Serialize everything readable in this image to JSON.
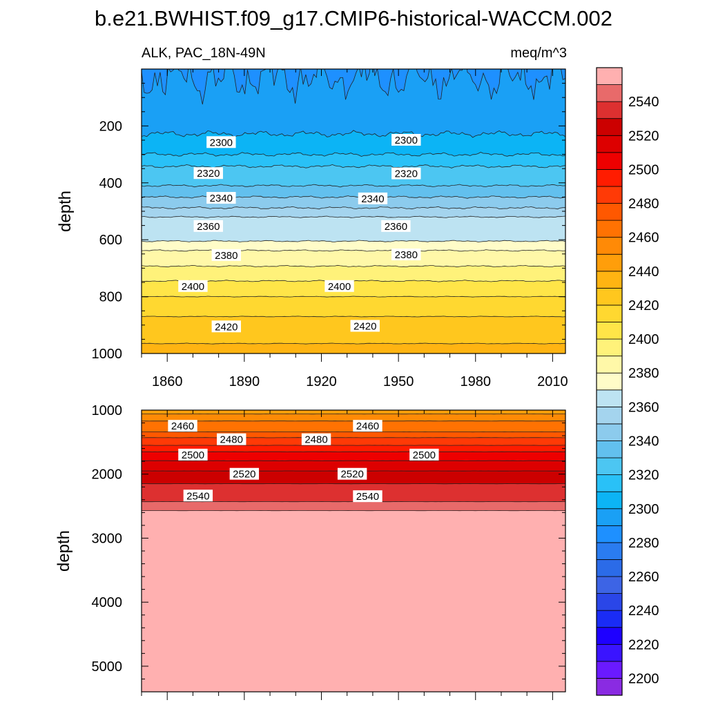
{
  "title": "b.e21.BWHIST.f09_g17.CMIP6-historical-WACCM.002",
  "left_label": "ALK, PAC_18N-49N",
  "right_label": "meq/m^3",
  "colorbar": {
    "levels": [
      2200,
      2210,
      2220,
      2230,
      2240,
      2250,
      2260,
      2270,
      2280,
      2290,
      2300,
      2310,
      2320,
      2330,
      2340,
      2350,
      2360,
      2370,
      2380,
      2390,
      2400,
      2410,
      2420,
      2430,
      2440,
      2450,
      2460,
      2470,
      2480,
      2490,
      2500,
      2510,
      2520,
      2530,
      2540,
      2550
    ],
    "tick_labels": [
      "2200",
      "2220",
      "2240",
      "2260",
      "2280",
      "2300",
      "2320",
      "2340",
      "2360",
      "2380",
      "2400",
      "2420",
      "2440",
      "2460",
      "2480",
      "2500",
      "2520",
      "2540"
    ],
    "colors": [
      "#8a2be2",
      "#6a1aff",
      "#3a14ff",
      "#1e00ff",
      "#1a2cf5",
      "#2a46e8",
      "#3d64e5",
      "#2b6be8",
      "#2a7cf0",
      "#1e90ff",
      "#1aa0f5",
      "#0cb4f5",
      "#29c1f7",
      "#4cc6f2",
      "#62c0ee",
      "#8ccbed",
      "#a4d4ee",
      "#bde3f2",
      "#fffcc8",
      "#fff8a8",
      "#fff27a",
      "#ffe548",
      "#ffd830",
      "#ffc71e",
      "#ffb412",
      "#ff9e0a",
      "#ff8a06",
      "#ff7202",
      "#ff5800",
      "#ff3a06",
      "#ff1c00",
      "#ee0000",
      "#dd0000",
      "#cc0000",
      "#dd3030",
      "#e86a6a",
      "#ffb0b0"
    ]
  },
  "chart_data": [
    {
      "type": "heatmap",
      "subtype": "filled-contour",
      "panel": "upper",
      "left_label": "ALK, PAC_18N-49N",
      "right_label": "meq/m^3",
      "ylabel": "depth",
      "xlabel": "",
      "xlim": [
        1850,
        2015
      ],
      "ylim": [
        0,
        1000
      ],
      "y_inverted": true,
      "x_ticks": [
        "1860",
        "1890",
        "1920",
        "1950",
        "1980",
        "2010"
      ],
      "y_ticks": [
        "200",
        "400",
        "600",
        "800",
        "1000"
      ],
      "contour_interval": 10,
      "grid": false,
      "contour_labels": [
        {
          "text": "2300",
          "x": 1881,
          "y": 258
        },
        {
          "text": "2300",
          "x": 1953,
          "y": 250
        },
        {
          "text": "2320",
          "x": 1876,
          "y": 367
        },
        {
          "text": "2320",
          "x": 1953,
          "y": 368
        },
        {
          "text": "2340",
          "x": 1881,
          "y": 454
        },
        {
          "text": "2340",
          "x": 1940,
          "y": 456
        },
        {
          "text": "2360",
          "x": 1876,
          "y": 553
        },
        {
          "text": "2360",
          "x": 1949,
          "y": 553
        },
        {
          "text": "2380",
          "x": 1883,
          "y": 655
        },
        {
          "text": "2380",
          "x": 1953,
          "y": 653
        },
        {
          "text": "2400",
          "x": 1870,
          "y": 764
        },
        {
          "text": "2400",
          "x": 1927,
          "y": 764
        },
        {
          "text": "2420",
          "x": 1883,
          "y": 906
        },
        {
          "text": "2420",
          "x": 1937,
          "y": 904
        }
      ],
      "level_depths": [
        {
          "level": 2290,
          "depth": 60,
          "variability": 50
        },
        {
          "level": 2300,
          "depth": 228,
          "variability": 8
        },
        {
          "level": 2310,
          "depth": 300,
          "variability": 5
        },
        {
          "level": 2320,
          "depth": 342,
          "variability": 4
        },
        {
          "level": 2330,
          "depth": 410,
          "variability": 3
        },
        {
          "level": 2340,
          "depth": 450,
          "variability": 3
        },
        {
          "level": 2350,
          "depth": 488,
          "variability": 3
        },
        {
          "level": 2360,
          "depth": 520,
          "variability": 2
        },
        {
          "level": 2370,
          "depth": 605,
          "variability": 2
        },
        {
          "level": 2380,
          "depth": 638,
          "variability": 2
        },
        {
          "level": 2390,
          "depth": 693,
          "variability": 2
        },
        {
          "level": 2400,
          "depth": 745,
          "variability": 2
        },
        {
          "level": 2410,
          "depth": 800,
          "variability": 1
        },
        {
          "level": 2420,
          "depth": 870,
          "variability": 1
        },
        {
          "level": 2430,
          "depth": 965,
          "variability": 1
        }
      ]
    },
    {
      "type": "heatmap",
      "subtype": "filled-contour",
      "panel": "lower",
      "ylabel": "depth",
      "xlabel": "",
      "xlim": [
        1850,
        2015
      ],
      "ylim": [
        1000,
        5400
      ],
      "y_inverted": true,
      "y_ticks": [
        "1000",
        "2000",
        "3000",
        "4000",
        "5000"
      ],
      "contour_interval": 10,
      "grid": false,
      "contour_labels": [
        {
          "text": "2460",
          "x": 1866,
          "y": 1250
        },
        {
          "text": "2460",
          "x": 1938,
          "y": 1250
        },
        {
          "text": "2480",
          "x": 1885,
          "y": 1460
        },
        {
          "text": "2480",
          "x": 1918,
          "y": 1460
        },
        {
          "text": "2500",
          "x": 1870,
          "y": 1700
        },
        {
          "text": "2500",
          "x": 1960,
          "y": 1700
        },
        {
          "text": "2520",
          "x": 1890,
          "y": 2000
        },
        {
          "text": "2520",
          "x": 1932,
          "y": 2000
        },
        {
          "text": "2540",
          "x": 1872,
          "y": 2340
        },
        {
          "text": "2540",
          "x": 1938,
          "y": 2350
        }
      ],
      "level_depths": [
        {
          "level": 2450,
          "depth": 1060,
          "variability": 1
        },
        {
          "level": 2460,
          "depth": 1170,
          "variability": 1
        },
        {
          "level": 2470,
          "depth": 1340,
          "variability": 1
        },
        {
          "level": 2480,
          "depth": 1430,
          "variability": 1
        },
        {
          "level": 2490,
          "depth": 1550,
          "variability": 1
        },
        {
          "level": 2500,
          "depth": 1650,
          "variability": 1
        },
        {
          "level": 2510,
          "depth": 1790,
          "variability": 1
        },
        {
          "level": 2520,
          "depth": 1950,
          "variability": 1
        },
        {
          "level": 2530,
          "depth": 2150,
          "variability": 1
        },
        {
          "level": 2540,
          "depth": 2430,
          "variability": 1
        },
        {
          "level": 2550,
          "depth": 2570,
          "variability": 1
        }
      ]
    }
  ]
}
